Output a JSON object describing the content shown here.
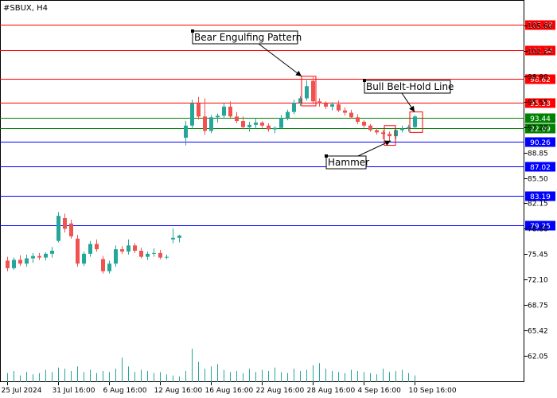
{
  "chart_data": {
    "type": "candlestick",
    "title": "#SBUX, H4",
    "grid": false,
    "ylim": [
      60.0,
      108.0
    ],
    "y_ticks": [
      "62.05",
      "65.42",
      "68.75",
      "72.10",
      "75.45",
      "78.80",
      "82.15",
      "85.50",
      "88.85",
      "92.20",
      "95.55",
      "98.90",
      "102.25",
      "105.60"
    ],
    "x_ticks": [
      "25 Jul 2024",
      "31 Jul 16:00",
      "6 Aug 16:00",
      "12 Aug 16:00",
      "16 Aug 16:00",
      "22 Aug 16:00",
      "28 Aug 16:00",
      "4 Sep 16:00",
      "10 Sep 16:00"
    ],
    "levels": [
      {
        "value": 105.68,
        "label": "105.68",
        "color": "#ff0000"
      },
      {
        "value": 102.34,
        "label": "102.34",
        "color": "#ff0000"
      },
      {
        "value": 98.62,
        "label": "98.62",
        "color": "#ff0000"
      },
      {
        "value": 95.38,
        "label": "95.38",
        "color": "#ff0000"
      },
      {
        "value": 93.44,
        "label": "93.44",
        "color": "#008000"
      },
      {
        "value": 92.09,
        "label": "92.09",
        "color": "#008000"
      },
      {
        "value": 90.26,
        "label": "90.26",
        "color": "#0000ff"
      },
      {
        "value": 87.02,
        "label": "87.02",
        "color": "#0000ff"
      },
      {
        "value": 83.19,
        "label": "83.19",
        "color": "#0000ff"
      },
      {
        "value": 79.25,
        "label": "79.25",
        "color": "#0000ff"
      }
    ],
    "annotations": [
      {
        "text": "Bear Engulfing Pattern",
        "bar": 47
      },
      {
        "text": "Bull Belt-Hold Line",
        "bar": 64
      },
      {
        "text": "Hammer",
        "bar": 60
      }
    ],
    "colors": {
      "bull": "#26a69a",
      "bear": "#ef5350",
      "volume": "#26a69a"
    },
    "candles": [
      {
        "o": 74.6,
        "h": 75.1,
        "l": 73.2,
        "c": 73.6
      },
      {
        "o": 73.6,
        "h": 75.0,
        "l": 73.4,
        "c": 74.7
      },
      {
        "o": 74.7,
        "h": 75.3,
        "l": 73.9,
        "c": 74.2
      },
      {
        "o": 74.2,
        "h": 75.4,
        "l": 73.8,
        "c": 74.9
      },
      {
        "o": 74.9,
        "h": 75.6,
        "l": 74.3,
        "c": 75.2
      },
      {
        "o": 75.2,
        "h": 75.6,
        "l": 74.7,
        "c": 75.0
      },
      {
        "o": 75.0,
        "h": 75.7,
        "l": 74.6,
        "c": 75.5
      },
      {
        "o": 75.5,
        "h": 76.4,
        "l": 75.0,
        "c": 75.9
      },
      {
        "o": 77.2,
        "h": 81.0,
        "l": 77.0,
        "c": 80.5
      },
      {
        "o": 80.2,
        "h": 80.8,
        "l": 78.3,
        "c": 78.8
      },
      {
        "o": 79.5,
        "h": 80.0,
        "l": 77.5,
        "c": 77.8
      },
      {
        "o": 77.5,
        "h": 78.0,
        "l": 73.8,
        "c": 74.2
      },
      {
        "o": 74.2,
        "h": 75.8,
        "l": 73.9,
        "c": 75.5
      },
      {
        "o": 75.5,
        "h": 77.2,
        "l": 75.1,
        "c": 76.8
      },
      {
        "o": 76.8,
        "h": 77.4,
        "l": 75.8,
        "c": 76.1
      },
      {
        "o": 74.8,
        "h": 75.2,
        "l": 72.9,
        "c": 73.2
      },
      {
        "o": 73.2,
        "h": 74.6,
        "l": 72.9,
        "c": 74.2
      },
      {
        "o": 74.2,
        "h": 76.6,
        "l": 73.8,
        "c": 76.1
      },
      {
        "o": 76.1,
        "h": 76.5,
        "l": 75.5,
        "c": 75.8
      },
      {
        "o": 75.8,
        "h": 77.4,
        "l": 75.4,
        "c": 76.6
      },
      {
        "o": 76.6,
        "h": 76.9,
        "l": 75.6,
        "c": 75.9
      },
      {
        "o": 75.9,
        "h": 76.3,
        "l": 74.9,
        "c": 75.1
      },
      {
        "o": 75.1,
        "h": 75.8,
        "l": 74.7,
        "c": 75.5
      },
      {
        "o": 75.5,
        "h": 76.2,
        "l": 75.1,
        "c": 75.6
      },
      {
        "o": 75.6,
        "h": 76.0,
        "l": 74.8,
        "c": 75.0
      },
      {
        "o": 75.0,
        "h": 75.4,
        "l": 74.8,
        "c": 75.1
      },
      {
        "o": 77.4,
        "h": 78.8,
        "l": 76.9,
        "c": 77.6
      },
      {
        "o": 77.6,
        "h": 78.0,
        "l": 77.0,
        "c": 77.9
      },
      {
        "o": 90.8,
        "h": 93.0,
        "l": 89.8,
        "c": 92.4
      },
      {
        "o": 92.4,
        "h": 95.8,
        "l": 92.0,
        "c": 95.3
      },
      {
        "o": 95.3,
        "h": 96.2,
        "l": 93.2,
        "c": 93.6
      },
      {
        "o": 93.6,
        "h": 96.0,
        "l": 91.2,
        "c": 91.7
      },
      {
        "o": 91.7,
        "h": 93.8,
        "l": 91.4,
        "c": 93.5
      },
      {
        "o": 93.5,
        "h": 94.0,
        "l": 92.8,
        "c": 93.7
      },
      {
        "o": 93.7,
        "h": 95.3,
        "l": 93.3,
        "c": 94.9
      },
      {
        "o": 94.9,
        "h": 95.6,
        "l": 93.4,
        "c": 93.6
      },
      {
        "o": 93.6,
        "h": 94.2,
        "l": 92.7,
        "c": 93.0
      },
      {
        "o": 93.0,
        "h": 93.6,
        "l": 91.9,
        "c": 92.2
      },
      {
        "o": 92.2,
        "h": 92.9,
        "l": 91.6,
        "c": 92.5
      },
      {
        "o": 92.5,
        "h": 93.3,
        "l": 92.0,
        "c": 92.8
      },
      {
        "o": 92.8,
        "h": 93.0,
        "l": 92.1,
        "c": 92.4
      },
      {
        "o": 92.4,
        "h": 92.7,
        "l": 91.6,
        "c": 91.9
      },
      {
        "o": 91.9,
        "h": 92.3,
        "l": 91.4,
        "c": 92.1
      },
      {
        "o": 92.1,
        "h": 93.8,
        "l": 91.9,
        "c": 93.4
      },
      {
        "o": 93.4,
        "h": 94.5,
        "l": 93.1,
        "c": 94.2
      },
      {
        "o": 94.2,
        "h": 95.8,
        "l": 93.9,
        "c": 95.4
      },
      {
        "o": 95.4,
        "h": 96.3,
        "l": 95.0,
        "c": 96.0
      },
      {
        "o": 96.0,
        "h": 98.4,
        "l": 95.7,
        "c": 97.6
      },
      {
        "o": 98.3,
        "h": 98.8,
        "l": 95.2,
        "c": 95.6
      },
      {
        "o": 95.6,
        "h": 96.0,
        "l": 94.9,
        "c": 95.3
      },
      {
        "o": 95.3,
        "h": 95.6,
        "l": 94.6,
        "c": 94.9
      },
      {
        "o": 94.9,
        "h": 95.5,
        "l": 94.4,
        "c": 95.2
      },
      {
        "o": 95.2,
        "h": 95.7,
        "l": 94.2,
        "c": 94.4
      },
      {
        "o": 94.4,
        "h": 94.8,
        "l": 93.7,
        "c": 94.1
      },
      {
        "o": 94.1,
        "h": 94.5,
        "l": 93.3,
        "c": 93.5
      },
      {
        "o": 93.5,
        "h": 93.9,
        "l": 92.6,
        "c": 92.9
      },
      {
        "o": 92.9,
        "h": 93.1,
        "l": 92.1,
        "c": 92.4
      },
      {
        "o": 92.4,
        "h": 92.6,
        "l": 91.6,
        "c": 91.8
      },
      {
        "o": 91.8,
        "h": 92.1,
        "l": 91.2,
        "c": 91.5
      },
      {
        "o": 91.5,
        "h": 91.8,
        "l": 90.6,
        "c": 91.3
      },
      {
        "o": 91.3,
        "h": 91.6,
        "l": 90.2,
        "c": 91.0
      },
      {
        "o": 91.0,
        "h": 92.0,
        "l": 90.6,
        "c": 91.8
      },
      {
        "o": 91.8,
        "h": 92.4,
        "l": 91.5,
        "c": 92.0
      },
      {
        "o": 92.0,
        "h": 92.5,
        "l": 91.6,
        "c": 92.2
      },
      {
        "o": 92.2,
        "h": 93.8,
        "l": 92.0,
        "c": 93.6
      }
    ],
    "volume": [
      8,
      10,
      6,
      9,
      7,
      8,
      11,
      9,
      13,
      12,
      10,
      14,
      9,
      11,
      8,
      10,
      9,
      12,
      22,
      14,
      9,
      11,
      10,
      8,
      9,
      7,
      6,
      5,
      10,
      30,
      18,
      12,
      14,
      16,
      11,
      9,
      10,
      8,
      12,
      9,
      11,
      10,
      13,
      9,
      8,
      12,
      10,
      11,
      15,
      17,
      12,
      10,
      9,
      8,
      11,
      10,
      9,
      8,
      7,
      12,
      9,
      10,
      11,
      8,
      6
    ]
  }
}
